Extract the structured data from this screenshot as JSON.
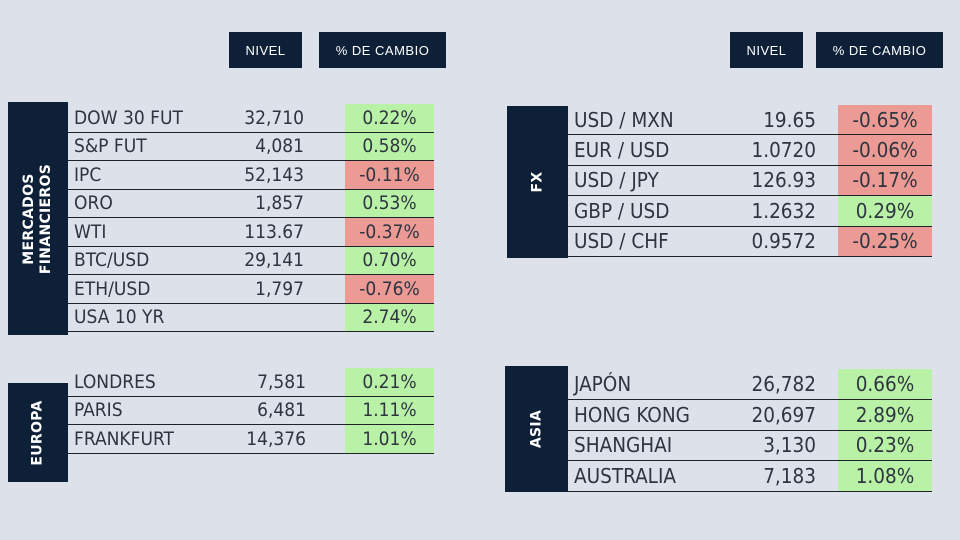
{
  "headers": {
    "left": {
      "level": "NIVEL",
      "change": "% DE CAMBIO"
    },
    "right": {
      "level": "NIVEL",
      "change": "% DE CAMBIO"
    }
  },
  "sections": {
    "mercados": {
      "label_line1": "MERCADOS",
      "label_line2": "FINANCIEROS",
      "rows": [
        {
          "name": "DOW 30 FUT",
          "level": "32,710",
          "change": "0.22%",
          "trend": "up"
        },
        {
          "name": "S&P FUT",
          "level": "4,081",
          "change": "0.58%",
          "trend": "up"
        },
        {
          "name": "IPC",
          "level": "52,143",
          "change": "-0.11%",
          "trend": "down"
        },
        {
          "name": "ORO",
          "level": "1,857",
          "change": "0.53%",
          "trend": "up"
        },
        {
          "name": "WTI",
          "level": "113.67",
          "change": "-0.37%",
          "trend": "down"
        },
        {
          "name": "BTC/USD",
          "level": "29,141",
          "change": "0.70%",
          "trend": "up"
        },
        {
          "name": "ETH/USD",
          "level": "1,797",
          "change": "-0.76%",
          "trend": "down"
        },
        {
          "name": "USA 10 YR",
          "level": "",
          "change": "2.74%",
          "trend": "up"
        }
      ]
    },
    "europa": {
      "label": "EUROPA",
      "rows": [
        {
          "name": "LONDRES",
          "level": "7,581",
          "change": "0.21%",
          "trend": "up"
        },
        {
          "name": "PARIS",
          "level": "6,481",
          "change": "1.11%",
          "trend": "up"
        },
        {
          "name": "FRANKFURT",
          "level": "14,376",
          "change": "1.01%",
          "trend": "up"
        }
      ]
    },
    "fx": {
      "label": "FX",
      "rows": [
        {
          "name": "USD / MXN",
          "level": "19.65",
          "change": "-0.65%",
          "trend": "down"
        },
        {
          "name": "EUR / USD",
          "level": "1.0720",
          "change": "-0.06%",
          "trend": "down"
        },
        {
          "name": "USD / JPY",
          "level": "126.93",
          "change": "-0.17%",
          "trend": "down"
        },
        {
          "name": "GBP / USD",
          "level": "1.2632",
          "change": "0.29%",
          "trend": "up"
        },
        {
          "name": "USD / CHF",
          "level": "0.9572",
          "change": "-0.25%",
          "trend": "down"
        }
      ]
    },
    "asia": {
      "label": "ASIA",
      "rows": [
        {
          "name": "JAPÓN",
          "level": "26,782",
          "change": "0.66%",
          "trend": "up"
        },
        {
          "name": "HONG KONG",
          "level": "20,697",
          "change": "2.89%",
          "trend": "up"
        },
        {
          "name": "SHANGHAI",
          "level": "3,130",
          "change": "0.23%",
          "trend": "up"
        },
        {
          "name": "AUSTRALIA",
          "level": "7,183",
          "change": "1.08%",
          "trend": "up"
        }
      ]
    }
  },
  "colors": {
    "background": "#dde1ea",
    "header_bg": "#0e2038",
    "positive": "#b9f2a6",
    "negative": "#ec9a94"
  }
}
